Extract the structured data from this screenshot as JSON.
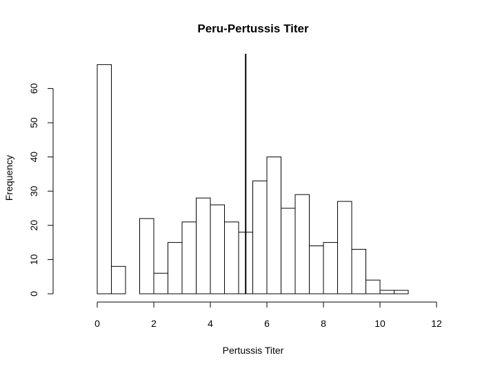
{
  "chart_data": {
    "type": "bar",
    "title": "Peru-Pertussis Titer",
    "xlabel": "Pertussis Titer",
    "ylabel": "Frequency",
    "bin_width": 0.5,
    "bin_starts": [
      0,
      0.5,
      1,
      1.5,
      2,
      2.5,
      3,
      3.5,
      4,
      4.5,
      5,
      5.5,
      6,
      6.5,
      7,
      7.5,
      8,
      8.5,
      9,
      9.5,
      10,
      10.5
    ],
    "values": [
      67,
      8,
      0,
      22,
      6,
      15,
      21,
      28,
      26,
      21,
      18,
      33,
      40,
      25,
      29,
      14,
      15,
      27,
      13,
      4,
      1,
      1
    ],
    "xlim": [
      0,
      12
    ],
    "ylim": [
      0,
      67
    ],
    "xticks": [
      "0",
      "2",
      "4",
      "6",
      "8",
      "10",
      "12"
    ],
    "yticks": [
      "0",
      "10",
      "20",
      "30",
      "40",
      "50",
      "60"
    ],
    "reference_line_x": 5.25,
    "grid": false
  }
}
